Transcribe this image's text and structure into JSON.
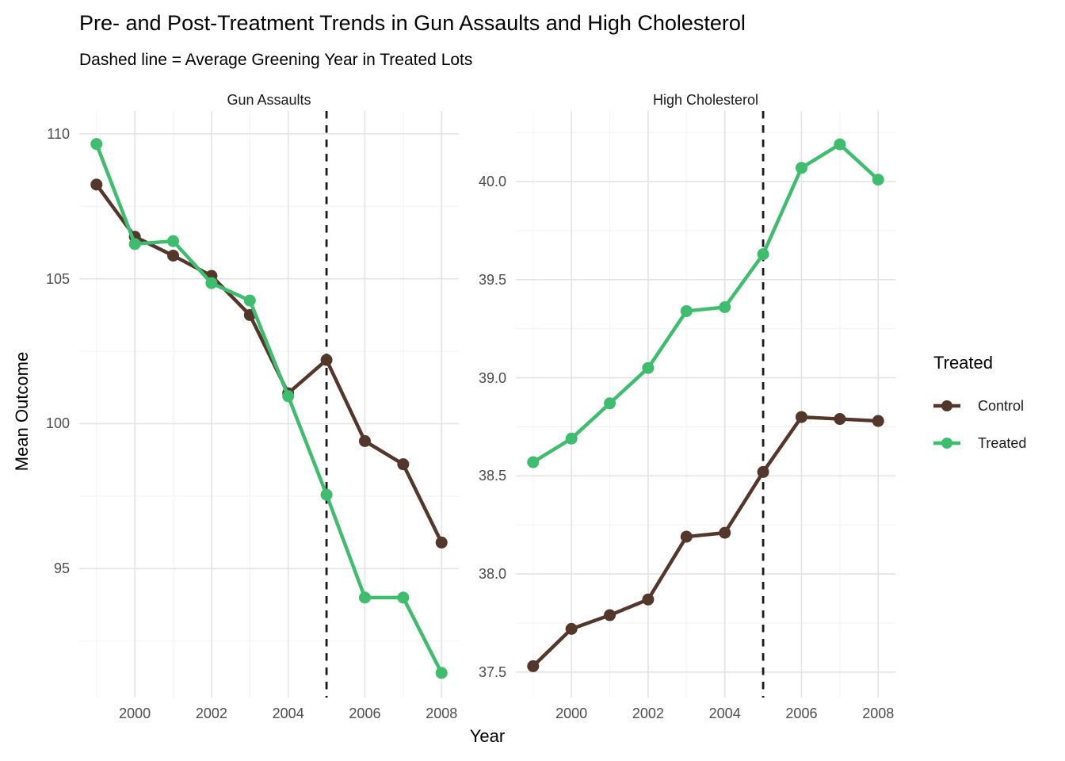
{
  "title": "Pre- and Post-Treatment Trends in Gun Assaults and High Cholesterol",
  "subtitle": "Dashed line = Average Greening Year in Treated Lots",
  "axes": {
    "x_label": "Year",
    "y_label": "Mean Outcome"
  },
  "legend": {
    "title": "Treated",
    "items": [
      {
        "label": "Control",
        "color": "#54372B"
      },
      {
        "label": "Treated",
        "color": "#3FBD6F"
      }
    ]
  },
  "colors": {
    "control": "#54372B",
    "treated": "#3FBD6F",
    "treatment_line": "#1a1a1a",
    "grid_major": "#e3e3e3",
    "grid_minor": "#f2f2f2",
    "tick_text": "#4d4d4d"
  },
  "chart_data": [
    {
      "type": "line",
      "facet": "Gun Assaults",
      "x": [
        1999,
        2000,
        2001,
        2002,
        2003,
        2004,
        2005,
        2006,
        2007,
        2008
      ],
      "series": [
        {
          "name": "Control",
          "values": [
            108.25,
            106.45,
            105.8,
            105.1,
            103.75,
            101.05,
            102.2,
            99.4,
            98.6,
            95.9
          ]
        },
        {
          "name": "Treated",
          "values": [
            109.65,
            106.2,
            106.3,
            104.85,
            104.25,
            100.95,
            97.55,
            94.0,
            94.0,
            91.4
          ]
        }
      ],
      "treatment_line_x": 2005,
      "xlim": [
        1998.55,
        2008.45
      ],
      "ylim": [
        90.55,
        110.79
      ],
      "x_ticks": [
        2000,
        2002,
        2004,
        2006,
        2008
      ],
      "x_tick_labels": [
        "2000",
        "2002",
        "2004",
        "2006",
        "2008"
      ],
      "x_minor": [
        1999,
        2001,
        2003,
        2005,
        2007
      ],
      "y_ticks": [
        95,
        100,
        105,
        110
      ],
      "y_tick_labels": [
        "95",
        "100",
        "105",
        "110"
      ],
      "y_minor": [
        92.5,
        97.5,
        102.5,
        107.5
      ],
      "grid": true,
      "legend_position": "right"
    },
    {
      "type": "line",
      "facet": "High Cholesterol",
      "x": [
        1999,
        2000,
        2001,
        2002,
        2003,
        2004,
        2005,
        2006,
        2007,
        2008
      ],
      "series": [
        {
          "name": "Control",
          "values": [
            37.53,
            37.72,
            37.79,
            37.87,
            38.19,
            38.21,
            38.52,
            38.8,
            38.79,
            38.78
          ]
        },
        {
          "name": "Treated",
          "values": [
            38.57,
            38.69,
            38.87,
            39.05,
            39.34,
            39.36,
            39.63,
            40.07,
            40.19,
            40.01
          ]
        }
      ],
      "treatment_line_x": 2005,
      "xlim": [
        1998.55,
        2008.45
      ],
      "ylim": [
        37.37,
        40.36
      ],
      "x_ticks": [
        2000,
        2002,
        2004,
        2006,
        2008
      ],
      "x_tick_labels": [
        "2000",
        "2002",
        "2004",
        "2006",
        "2008"
      ],
      "x_minor": [
        1999,
        2001,
        2003,
        2005,
        2007
      ],
      "y_ticks": [
        37.5,
        38.0,
        38.5,
        39.0,
        39.5,
        40.0
      ],
      "y_tick_labels": [
        "37.5",
        "38.0",
        "38.5",
        "39.0",
        "39.5",
        "40.0"
      ],
      "y_minor": [
        37.75,
        38.25,
        38.75,
        39.25,
        39.75,
        40.25
      ],
      "grid": true,
      "legend_position": "right"
    }
  ]
}
